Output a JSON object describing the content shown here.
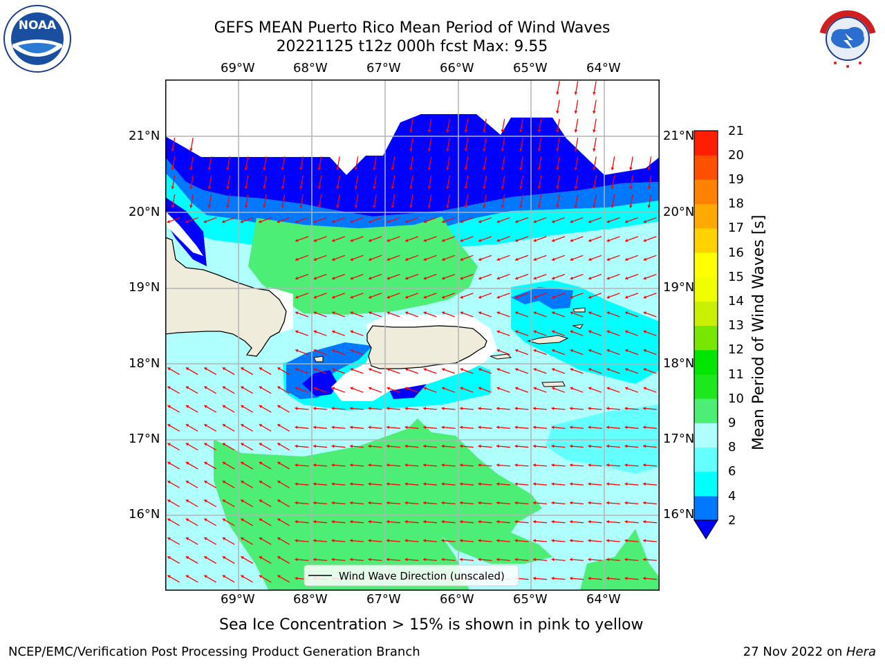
{
  "title": {
    "line1": "GEFS MEAN Puerto Rico Mean Period of Wind Waves",
    "line2": "20221125 t12z 000h fcst   Max: 9.55"
  },
  "logos": {
    "left": "NOAA",
    "right": "NATIONAL WEATHER SERVICE"
  },
  "map": {
    "lon_labels": [
      "69°W",
      "68°W",
      "67°W",
      "66°W",
      "65°W",
      "64°W"
    ],
    "lat_labels": [
      "21°N",
      "20°N",
      "19°N",
      "18°N",
      "17°N",
      "16°N"
    ],
    "legend": "Wind Wave Direction (unscaled)",
    "colors": {
      "land": "#efecdc",
      "arrow": "#ff0000",
      "grid": "#b4b4b4"
    }
  },
  "colorbar": {
    "label": "Mean Period of Wind Waves [s]",
    "ticks": [
      "2",
      "4",
      "6",
      "8",
      "9",
      "10",
      "11",
      "12",
      "13",
      "14",
      "15",
      "16",
      "17",
      "18",
      "19",
      "20",
      "21"
    ],
    "colors": [
      "#0000ff",
      "#0078ff",
      "#00ffff",
      "#64ffff",
      "#afffff",
      "#4dee75",
      "#1de81d",
      "#00e600",
      "#78e600",
      "#c8f000",
      "#f0ff00",
      "#ffff00",
      "#ffd200",
      "#ffaa00",
      "#ff8200",
      "#ff5000",
      "#ff1e00",
      "#ff0000"
    ]
  },
  "note": "Sea Ice Concentration > 15% is shown in pink to yellow",
  "footer": {
    "left": "NCEP/EMC/Verification Post Processing Product Generation Branch",
    "right_date": "27 Nov 2022 on ",
    "right_machine": "Hera"
  }
}
